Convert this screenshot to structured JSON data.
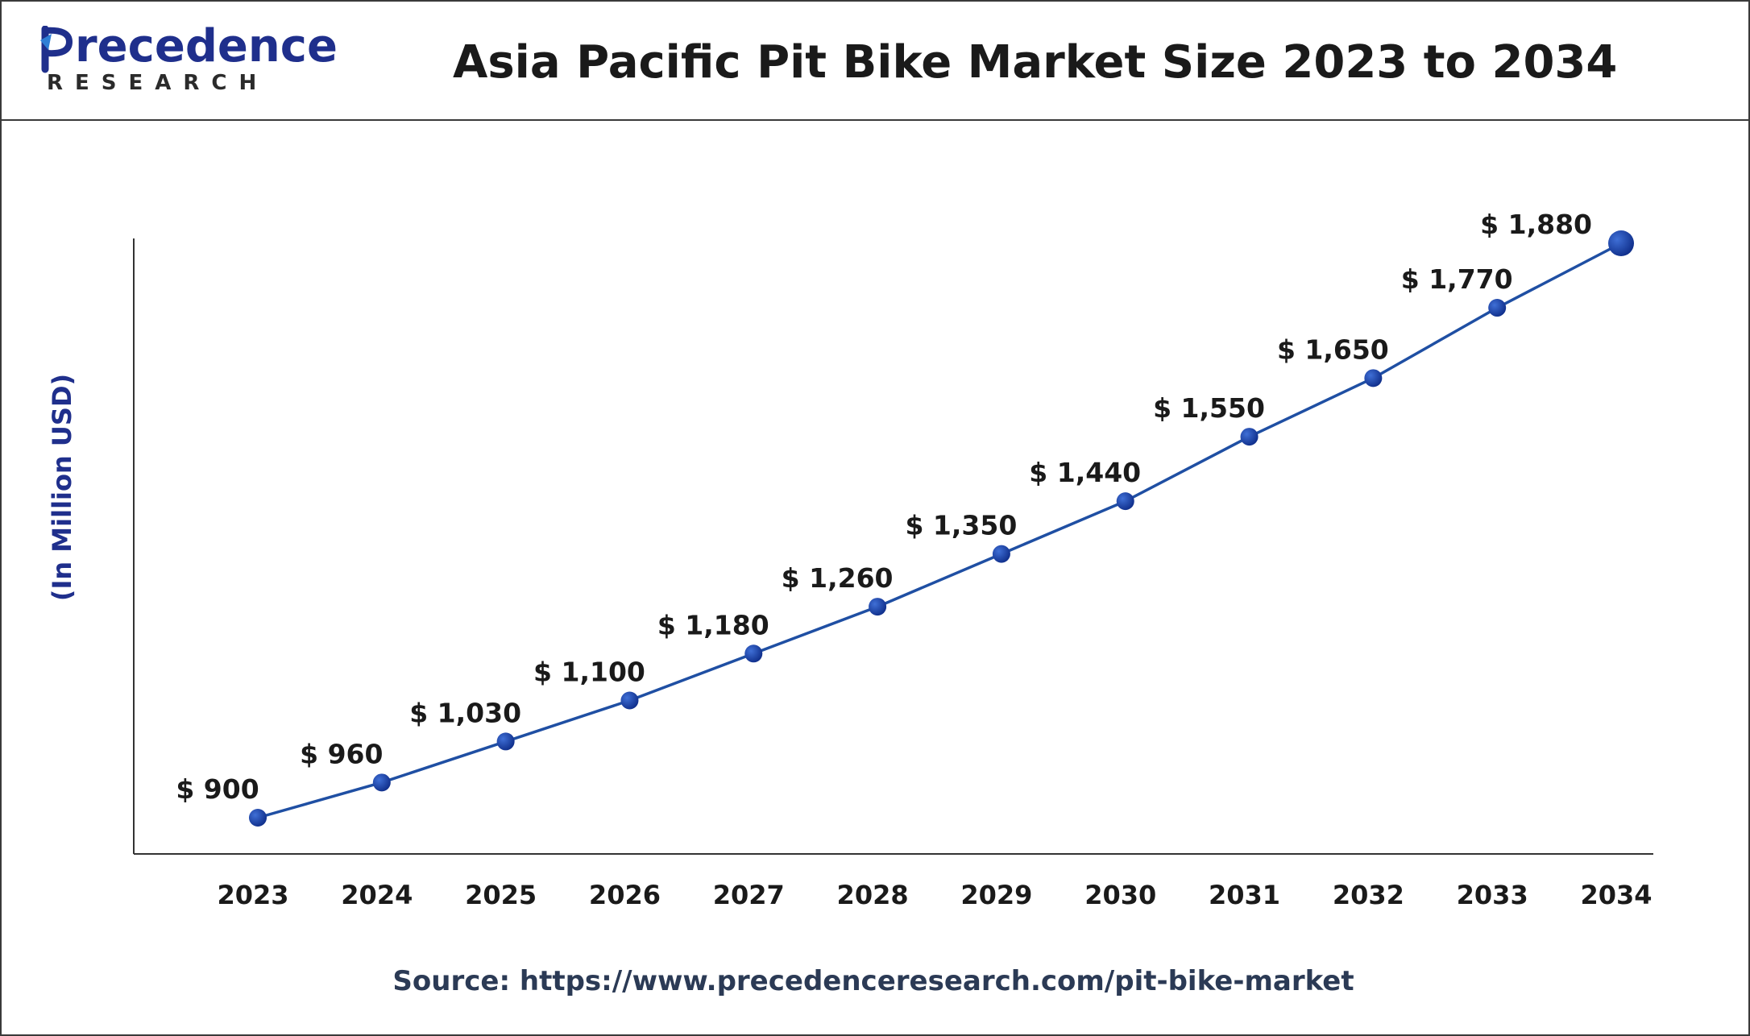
{
  "brand": {
    "name": "recedence",
    "letter": "P",
    "sub": "RESEARCH",
    "color": "#1f2f8c"
  },
  "header": {
    "title": "Asia Pacific Pit Bike Market Size 2023 to 2034"
  },
  "footer": {
    "source": "Source: https://www.precedenceresearch.com/pit-bike-market"
  },
  "chart_data": {
    "type": "line",
    "title": "Asia Pacific Pit Bike Market Size 2023 to 2034",
    "ylabel": "(In Million USD)",
    "xlabel": "",
    "categories": [
      "2023",
      "2024",
      "2025",
      "2026",
      "2027",
      "2028",
      "2029",
      "2030",
      "2031",
      "2032",
      "2033",
      "2034"
    ],
    "values": [
      900,
      960,
      1030,
      1100,
      1180,
      1260,
      1350,
      1440,
      1550,
      1650,
      1770,
      1880
    ],
    "data_labels": [
      "$ 900",
      "$ 960",
      "$ 1,030",
      "$ 1,100",
      "$ 1,180",
      "$ 1,260",
      "$ 1,350",
      "$ 1,440",
      "$ 1,550",
      "$ 1,650",
      "$ 1,770",
      "$ 1,880"
    ],
    "grid": false,
    "legend": "none",
    "line_color": "#1f4fa3",
    "marker_color": "#0f2e8a",
    "ylim": [
      850,
      1900
    ]
  }
}
